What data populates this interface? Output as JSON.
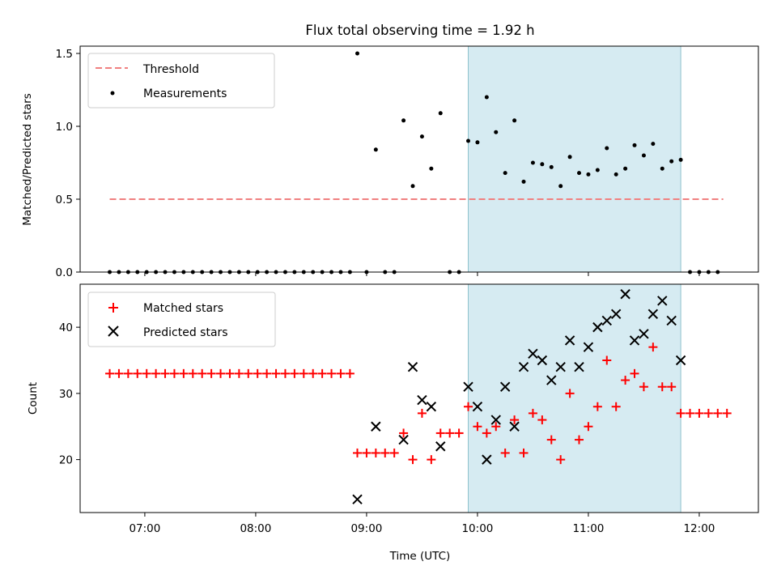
{
  "figure": {
    "title": "Flux total observing time = 1.92 h",
    "xlabel": "Time (UTC)",
    "x_tick_labels": [
      "07:00",
      "08:00",
      "09:00",
      "10:00",
      "11:00",
      "12:00"
    ],
    "shaded_region": {
      "x": [
        "09:55",
        "11:50"
      ],
      "color": "#add8e6"
    }
  },
  "chart_data": [
    {
      "type": "scatter",
      "ylabel": "Matched/Predicted stars",
      "ylim": [
        0,
        1.55
      ],
      "y_ticks": [
        "0.0",
        "0.5",
        "1.0",
        "1.5"
      ],
      "xlim": [
        "06:25",
        "12:32"
      ],
      "legend": {
        "placement": "top-left",
        "entries": [
          "Threshold",
          "Measurements"
        ]
      },
      "threshold": {
        "name": "Threshold",
        "value": 0.5,
        "x": [
          "06:41",
          "12:13"
        ],
        "color": "#f08080",
        "style": "dashed"
      },
      "series": [
        {
          "name": "Measurements",
          "color": "#000000",
          "points": [
            [
              "06:41",
              0
            ],
            [
              "06:46",
              0
            ],
            [
              "06:51",
              0
            ],
            [
              "06:56",
              0
            ],
            [
              "07:01",
              0
            ],
            [
              "07:06",
              0
            ],
            [
              "07:11",
              0
            ],
            [
              "07:16",
              0
            ],
            [
              "07:21",
              0
            ],
            [
              "07:26",
              0
            ],
            [
              "07:31",
              0
            ],
            [
              "07:36",
              0
            ],
            [
              "07:41",
              0
            ],
            [
              "07:46",
              0
            ],
            [
              "07:51",
              0
            ],
            [
              "07:56",
              0
            ],
            [
              "08:01",
              0
            ],
            [
              "08:06",
              0
            ],
            [
              "08:11",
              0
            ],
            [
              "08:16",
              0
            ],
            [
              "08:21",
              0
            ],
            [
              "08:26",
              0
            ],
            [
              "08:31",
              0
            ],
            [
              "08:36",
              0
            ],
            [
              "08:41",
              0
            ],
            [
              "08:46",
              0
            ],
            [
              "08:51",
              0
            ],
            [
              "08:55",
              1.5
            ],
            [
              "09:00",
              0
            ],
            [
              "09:05",
              0.84
            ],
            [
              "09:10",
              0
            ],
            [
              "09:15",
              0
            ],
            [
              "09:20",
              1.04
            ],
            [
              "09:25",
              0.59
            ],
            [
              "09:30",
              0.93
            ],
            [
              "09:35",
              0.71
            ],
            [
              "09:40",
              1.09
            ],
            [
              "09:45",
              0
            ],
            [
              "09:50",
              0
            ],
            [
              "09:55",
              0.9
            ],
            [
              "10:00",
              0.89
            ],
            [
              "10:05",
              1.2
            ],
            [
              "10:10",
              0.96
            ],
            [
              "10:15",
              0.68
            ],
            [
              "10:20",
              1.04
            ],
            [
              "10:25",
              0.62
            ],
            [
              "10:30",
              0.75
            ],
            [
              "10:35",
              0.74
            ],
            [
              "10:40",
              0.72
            ],
            [
              "10:45",
              0.59
            ],
            [
              "10:50",
              0.79
            ],
            [
              "10:55",
              0.68
            ],
            [
              "11:00",
              0.67
            ],
            [
              "11:05",
              0.7
            ],
            [
              "11:10",
              0.85
            ],
            [
              "11:15",
              0.67
            ],
            [
              "11:20",
              0.71
            ],
            [
              "11:25",
              0.87
            ],
            [
              "11:30",
              0.8
            ],
            [
              "11:35",
              0.88
            ],
            [
              "11:40",
              0.71
            ],
            [
              "11:45",
              0.76
            ],
            [
              "11:50",
              0.77
            ],
            [
              "11:55",
              0
            ],
            [
              "12:00",
              0
            ],
            [
              "12:05",
              0
            ],
            [
              "12:10",
              0
            ]
          ]
        }
      ]
    },
    {
      "type": "scatter",
      "ylabel": "Count",
      "ylim": [
        12,
        46.5
      ],
      "y_ticks": [
        "20",
        "30",
        "40"
      ],
      "xlim": [
        "06:25",
        "12:32"
      ],
      "legend": {
        "placement": "top-left",
        "entries": [
          "Matched stars",
          "Predicted stars"
        ]
      },
      "series": [
        {
          "name": "Matched stars",
          "color": "#ff0000",
          "marker": "plus",
          "points": [
            [
              "06:41",
              33
            ],
            [
              "06:46",
              33
            ],
            [
              "06:51",
              33
            ],
            [
              "06:56",
              33
            ],
            [
              "07:01",
              33
            ],
            [
              "07:06",
              33
            ],
            [
              "07:11",
              33
            ],
            [
              "07:16",
              33
            ],
            [
              "07:21",
              33
            ],
            [
              "07:26",
              33
            ],
            [
              "07:31",
              33
            ],
            [
              "07:36",
              33
            ],
            [
              "07:41",
              33
            ],
            [
              "07:46",
              33
            ],
            [
              "07:51",
              33
            ],
            [
              "07:56",
              33
            ],
            [
              "08:01",
              33
            ],
            [
              "08:06",
              33
            ],
            [
              "08:11",
              33
            ],
            [
              "08:16",
              33
            ],
            [
              "08:21",
              33
            ],
            [
              "08:26",
              33
            ],
            [
              "08:31",
              33
            ],
            [
              "08:36",
              33
            ],
            [
              "08:41",
              33
            ],
            [
              "08:46",
              33
            ],
            [
              "08:51",
              33
            ],
            [
              "08:55",
              21
            ],
            [
              "09:00",
              21
            ],
            [
              "09:05",
              21
            ],
            [
              "09:10",
              21
            ],
            [
              "09:15",
              21
            ],
            [
              "09:20",
              24
            ],
            [
              "09:25",
              20
            ],
            [
              "09:30",
              27
            ],
            [
              "09:35",
              20
            ],
            [
              "09:40",
              24
            ],
            [
              "09:45",
              24
            ],
            [
              "09:50",
              24
            ],
            [
              "09:55",
              28
            ],
            [
              "10:00",
              25
            ],
            [
              "10:05",
              24
            ],
            [
              "10:10",
              25
            ],
            [
              "10:15",
              21
            ],
            [
              "10:20",
              26
            ],
            [
              "10:25",
              21
            ],
            [
              "10:30",
              27
            ],
            [
              "10:35",
              26
            ],
            [
              "10:40",
              23
            ],
            [
              "10:45",
              20
            ],
            [
              "10:50",
              30
            ],
            [
              "10:55",
              23
            ],
            [
              "11:00",
              25
            ],
            [
              "11:05",
              28
            ],
            [
              "11:10",
              35
            ],
            [
              "11:15",
              28
            ],
            [
              "11:20",
              32
            ],
            [
              "11:25",
              33
            ],
            [
              "11:30",
              31
            ],
            [
              "11:35",
              37
            ],
            [
              "11:40",
              31
            ],
            [
              "11:45",
              31
            ],
            [
              "11:50",
              27
            ],
            [
              "11:55",
              27
            ],
            [
              "12:00",
              27
            ],
            [
              "12:05",
              27
            ],
            [
              "12:10",
              27
            ],
            [
              "12:15",
              27
            ]
          ]
        },
        {
          "name": "Predicted stars",
          "color": "#000000",
          "marker": "x",
          "points": [
            [
              "08:55",
              14
            ],
            [
              "09:05",
              25
            ],
            [
              "09:20",
              23
            ],
            [
              "09:25",
              34
            ],
            [
              "09:30",
              29
            ],
            [
              "09:35",
              28
            ],
            [
              "09:40",
              22
            ],
            [
              "09:55",
              31
            ],
            [
              "10:00",
              28
            ],
            [
              "10:05",
              20
            ],
            [
              "10:10",
              26
            ],
            [
              "10:15",
              31
            ],
            [
              "10:20",
              25
            ],
            [
              "10:25",
              34
            ],
            [
              "10:30",
              36
            ],
            [
              "10:35",
              35
            ],
            [
              "10:40",
              32
            ],
            [
              "10:45",
              34
            ],
            [
              "10:50",
              38
            ],
            [
              "10:55",
              34
            ],
            [
              "11:00",
              37
            ],
            [
              "11:05",
              40
            ],
            [
              "11:10",
              41
            ],
            [
              "11:15",
              42
            ],
            [
              "11:20",
              45
            ],
            [
              "11:25",
              38
            ],
            [
              "11:30",
              39
            ],
            [
              "11:35",
              42
            ],
            [
              "11:40",
              44
            ],
            [
              "11:45",
              41
            ],
            [
              "11:50",
              35
            ]
          ]
        }
      ]
    }
  ]
}
